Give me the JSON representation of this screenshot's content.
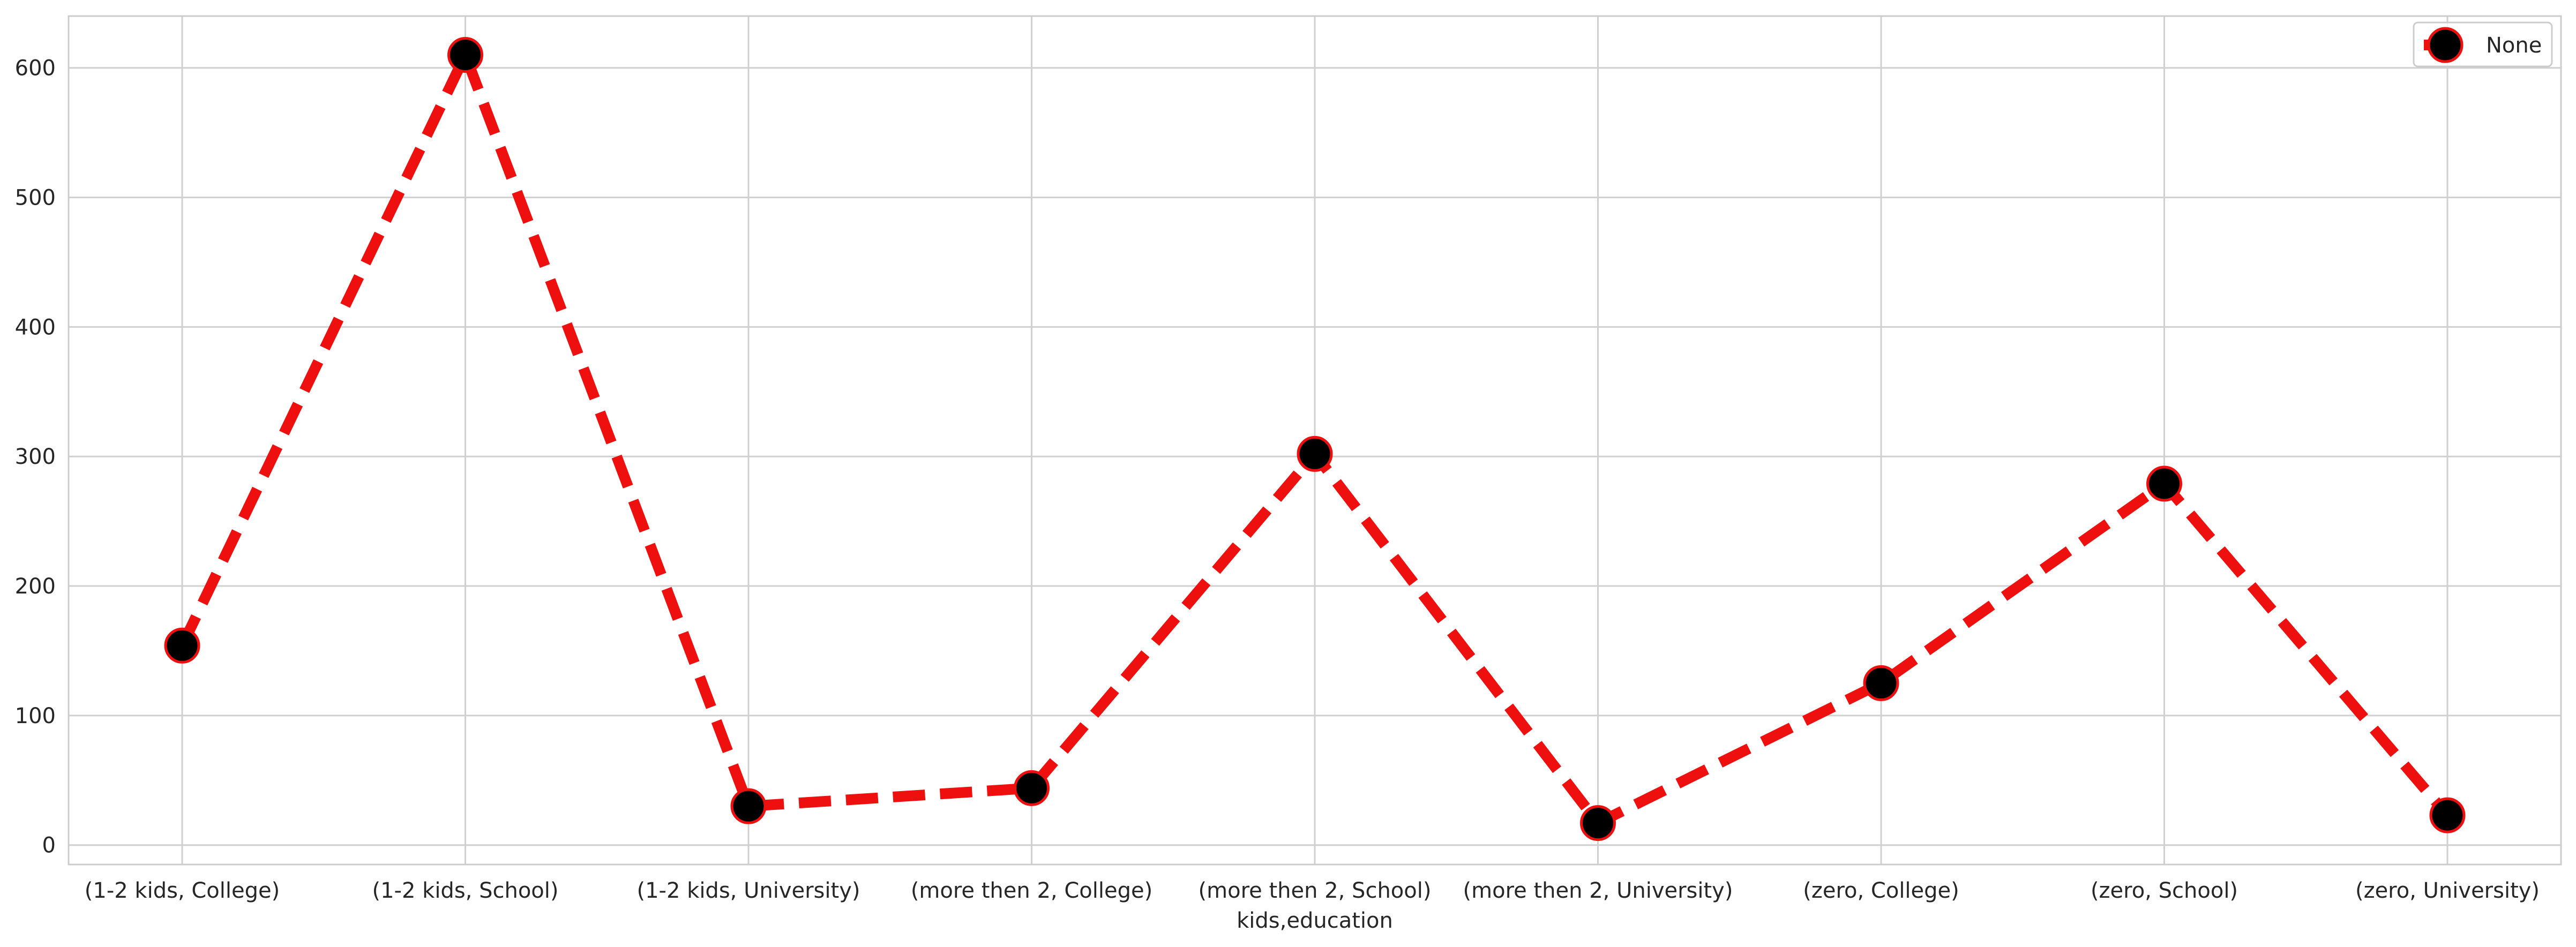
{
  "chart_data": {
    "type": "line",
    "xlabel": "kids,education",
    "ylabel": "",
    "categories": [
      "(1-2 kids, College)",
      "(1-2 kids, School)",
      "(1-2 kids, University)",
      "(more then 2, College)",
      "(more then 2, School)",
      "(more then 2, University)",
      "(zero, College)",
      "(zero, School)",
      "(zero, University)"
    ],
    "series": [
      {
        "name": "None",
        "values": [
          154,
          610,
          30,
          44,
          302,
          17,
          125,
          279,
          23
        ]
      }
    ],
    "ylim": [
      -15,
      640
    ],
    "yticks": [
      0,
      100,
      200,
      300,
      400,
      500,
      600
    ],
    "grid": true,
    "legend": "top-right",
    "colors": {
      "line": "#ee0f0f",
      "marker": "#000000",
      "marker_edge": "#ee0f0f",
      "grid": "#d0d0d0",
      "axes_edge": "#cccccc"
    }
  }
}
